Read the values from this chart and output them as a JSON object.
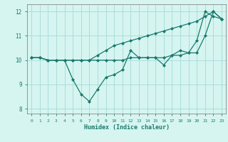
{
  "xlabel": "Humidex (Indice chaleur)",
  "bg_color": "#d6f5f0",
  "grid_color": "#aadddd",
  "line_color": "#1a7a6e",
  "xlim": [
    -0.5,
    23.5
  ],
  "ylim": [
    7.8,
    12.3
  ],
  "xticks": [
    0,
    1,
    2,
    3,
    4,
    5,
    6,
    7,
    8,
    9,
    10,
    11,
    12,
    13,
    14,
    15,
    16,
    17,
    18,
    19,
    20,
    21,
    22,
    23
  ],
  "yticks": [
    8,
    9,
    10,
    11,
    12
  ],
  "series": [
    [
      10.1,
      10.1,
      10.0,
      10.0,
      10.0,
      9.2,
      8.6,
      8.3,
      8.8,
      9.3,
      9.4,
      9.6,
      10.4,
      10.1,
      10.1,
      10.1,
      9.8,
      10.2,
      10.4,
      10.3,
      10.8,
      12.0,
      11.8,
      11.7
    ],
    [
      10.1,
      10.1,
      10.0,
      10.0,
      10.0,
      10.0,
      10.0,
      10.0,
      10.2,
      10.4,
      10.6,
      10.7,
      10.8,
      10.9,
      11.0,
      11.1,
      11.2,
      11.3,
      11.4,
      11.5,
      11.6,
      11.8,
      12.0,
      11.7
    ],
    [
      10.1,
      10.1,
      10.0,
      10.0,
      10.0,
      10.0,
      10.0,
      10.0,
      10.0,
      10.0,
      10.0,
      10.0,
      10.1,
      10.1,
      10.1,
      10.1,
      10.1,
      10.2,
      10.2,
      10.3,
      10.3,
      11.0,
      12.0,
      11.7
    ]
  ]
}
